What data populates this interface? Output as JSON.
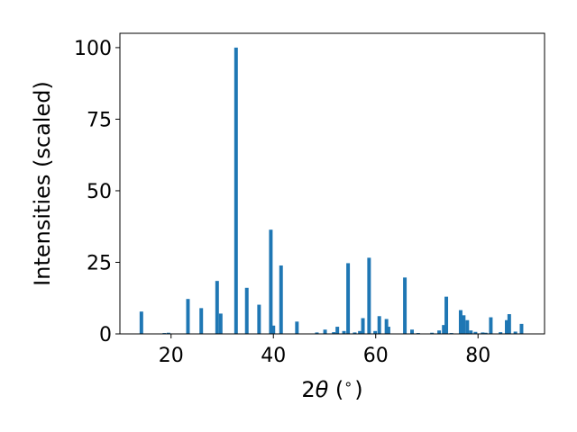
{
  "chart_data": {
    "type": "bar",
    "xlabel": "2θ (°)",
    "xlabel_parts": {
      "prefix": "2",
      "symbol": "θ",
      "suffix": " (",
      "degree": "∘",
      "close": ")"
    },
    "ylabel": "Intensities (scaled)",
    "xlim": [
      10,
      93
    ],
    "ylim": [
      0,
      105
    ],
    "xticks": [
      20,
      40,
      60,
      80
    ],
    "yticks": [
      0,
      25,
      50,
      75,
      100
    ],
    "grid": false,
    "bar_width": 0.7,
    "color": "#1f77b4",
    "series": [
      {
        "x": [
          14.2,
          18.7,
          19.5,
          23.3,
          25.9,
          29.0,
          29.7,
          32.7,
          34.8,
          37.2,
          39.5,
          40.0,
          41.5,
          44.6,
          48.5,
          50.1,
          51.8,
          52.5,
          53.8,
          54.6,
          55.9,
          56.9,
          57.5,
          58.7,
          59.9,
          60.7,
          62.1,
          62.5,
          65.7,
          67.1,
          68.3,
          71.0,
          72.4,
          73.3,
          73.8,
          74.8,
          76.6,
          77.2,
          77.9,
          78.6,
          79.5,
          80.9,
          81.5,
          82.5,
          84.4,
          85.6,
          86.1,
          87.3,
          88.5
        ],
        "values": [
          7.8,
          0.3,
          0.4,
          12.2,
          9.0,
          18.5,
          7.1,
          100.0,
          16.1,
          10.2,
          36.4,
          2.9,
          23.9,
          4.3,
          0.5,
          1.5,
          0.6,
          2.5,
          1.0,
          24.7,
          0.5,
          1.0,
          5.5,
          26.6,
          1.0,
          6.2,
          5.2,
          2.5,
          19.7,
          1.5,
          0.3,
          0.4,
          1.2,
          3.1,
          13.0,
          0.3,
          8.3,
          6.5,
          4.8,
          1.2,
          0.7,
          0.5,
          0.4,
          5.8,
          0.6,
          4.8,
          6.9,
          0.8,
          3.5
        ]
      }
    ]
  }
}
